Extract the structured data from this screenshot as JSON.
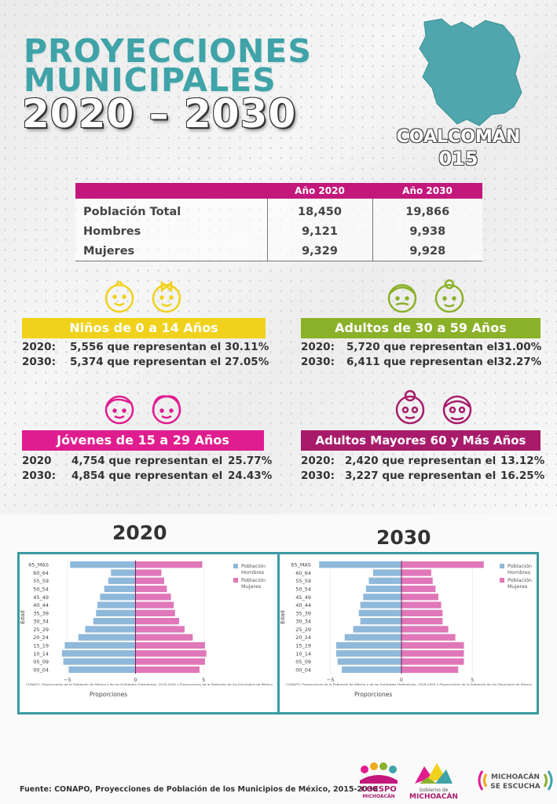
{
  "header": {
    "title_line1": "PROYECCIONES",
    "title_line2": "MUNICIPALES",
    "title_line3": "2020 – 2030",
    "municipio": "COALCOMÁN",
    "clave": "015"
  },
  "population_table": {
    "col_2020": "Año 2020",
    "col_2030": "Año 2030",
    "rows": [
      {
        "label": "Población Total",
        "v2020": "18,450",
        "v2030": "19,866"
      },
      {
        "label": "Hombres",
        "v2020": "9,121",
        "v2030": "9,938"
      },
      {
        "label": "Mujeres",
        "v2020": "9,329",
        "v2030": "9,928"
      }
    ]
  },
  "groups": {
    "ninos": {
      "title": "Niños de 0 a 14 Años",
      "color": "#f0d21c",
      "rows": [
        {
          "year": "2020:",
          "text": "5,556 que representan el",
          "pct": "30.11%"
        },
        {
          "year": "2030:",
          "text": "5,374 que representan el",
          "pct": "27.05%"
        }
      ]
    },
    "adultos": {
      "title": "Adultos de 30 a 59 Años",
      "color": "#8bb12a",
      "rows": [
        {
          "year": "2020:",
          "text": "5,720 que representan el",
          "pct": "31.00%"
        },
        {
          "year": "2030:",
          "text": "6,411 que representan el",
          "pct": "32.27%"
        }
      ]
    },
    "jovenes": {
      "title": "Jóvenes de 15 a 29 Años",
      "color": "#e01d8f",
      "rows": [
        {
          "year": "2020",
          "text": "4,754 que representan el",
          "pct": "25.77%"
        },
        {
          "year": "2030:",
          "text": "4,854 que representan el",
          "pct": "24.43%"
        }
      ]
    },
    "mayores": {
      "title": "Adultos Mayores  60 y Más Años",
      "color": "#a81b6b",
      "rows": [
        {
          "year": "2020:",
          "text": "2,420 que representan el",
          "pct": "13.12%"
        },
        {
          "year": "2030:",
          "text": "3,227 que representan el",
          "pct": "16.25%"
        }
      ]
    }
  },
  "chart_data": [
    {
      "type": "bar",
      "title": "2020",
      "orientation": "horizontal",
      "ylabel": "Edad",
      "xlabel": "Proporciones",
      "xlim": [
        -6.2,
        6.2
      ],
      "xticks": [
        "−5",
        "0",
        "5"
      ],
      "legend": "top-right",
      "source_note": "CONAPO, Proyecciones de la Población de México y de las Entidades Federativas, 2016-2050 y Proyecciones de la Población de los Municipios de México",
      "categories": [
        "65_MAS",
        "60_64",
        "55_59",
        "50_54",
        "45_49",
        "40_44",
        "35_39",
        "30_34",
        "25_29",
        "20_24",
        "15_19",
        "10_14",
        "05_09",
        "00_04"
      ],
      "series": [
        {
          "name": "Población Hombres",
          "color": "#8fb8da",
          "values": [
            -4.8,
            -1.8,
            -2.0,
            -2.3,
            -2.6,
            -2.8,
            -2.9,
            -3.1,
            -3.7,
            -4.2,
            -5.2,
            -5.4,
            -5.3,
            -4.9
          ]
        },
        {
          "name": "Población Mujeres",
          "color": "#e077b8",
          "values": [
            4.9,
            1.9,
            2.1,
            2.3,
            2.6,
            2.8,
            2.9,
            3.2,
            3.6,
            4.2,
            5.1,
            5.2,
            5.1,
            4.7
          ]
        }
      ]
    },
    {
      "type": "bar",
      "title": "2030",
      "orientation": "horizontal",
      "ylabel": "Edad",
      "xlabel": "Proporciones",
      "xlim": [
        -6.2,
        6.2
      ],
      "xticks": [
        "−5",
        "0",
        "5"
      ],
      "legend": "top-right",
      "source_note": "CONAPO, Proyecciones de la Población de México y de las Entidades Federativas, 2016-2050 y Proyecciones de la Población de los Municipios de México",
      "categories": [
        "65_MAS",
        "60_64",
        "55_59",
        "50_54",
        "45_49",
        "40_44",
        "35_39",
        "30_34",
        "25_29",
        "20_24",
        "15_19",
        "10_14",
        "05_09",
        "00_04"
      ],
      "series": [
        {
          "name": "Población Hombres",
          "color": "#8fb8da",
          "values": [
            -5.8,
            -2.0,
            -2.3,
            -2.5,
            -2.7,
            -2.9,
            -3.0,
            -2.9,
            -3.4,
            -4.0,
            -4.6,
            -4.6,
            -4.5,
            -4.2
          ]
        },
        {
          "name": "Población Mujeres",
          "color": "#e077b8",
          "values": [
            5.8,
            2.1,
            2.2,
            2.4,
            2.6,
            2.8,
            2.9,
            2.9,
            3.3,
            3.8,
            4.4,
            4.4,
            4.4,
            4.0
          ]
        }
      ]
    }
  ],
  "footer": {
    "source": "Fuente: CONAPO, Proyecciones de Población de los Municipios de México, 2015-2030",
    "logo1_a": "COESPO",
    "logo1_b": "MICHOACÁN",
    "logo2_a": "Gobierno de",
    "logo2_b": "MICHOACÁN",
    "logo3_a": "MICHOACÁN",
    "logo3_b": "SE ESCUCHA"
  }
}
